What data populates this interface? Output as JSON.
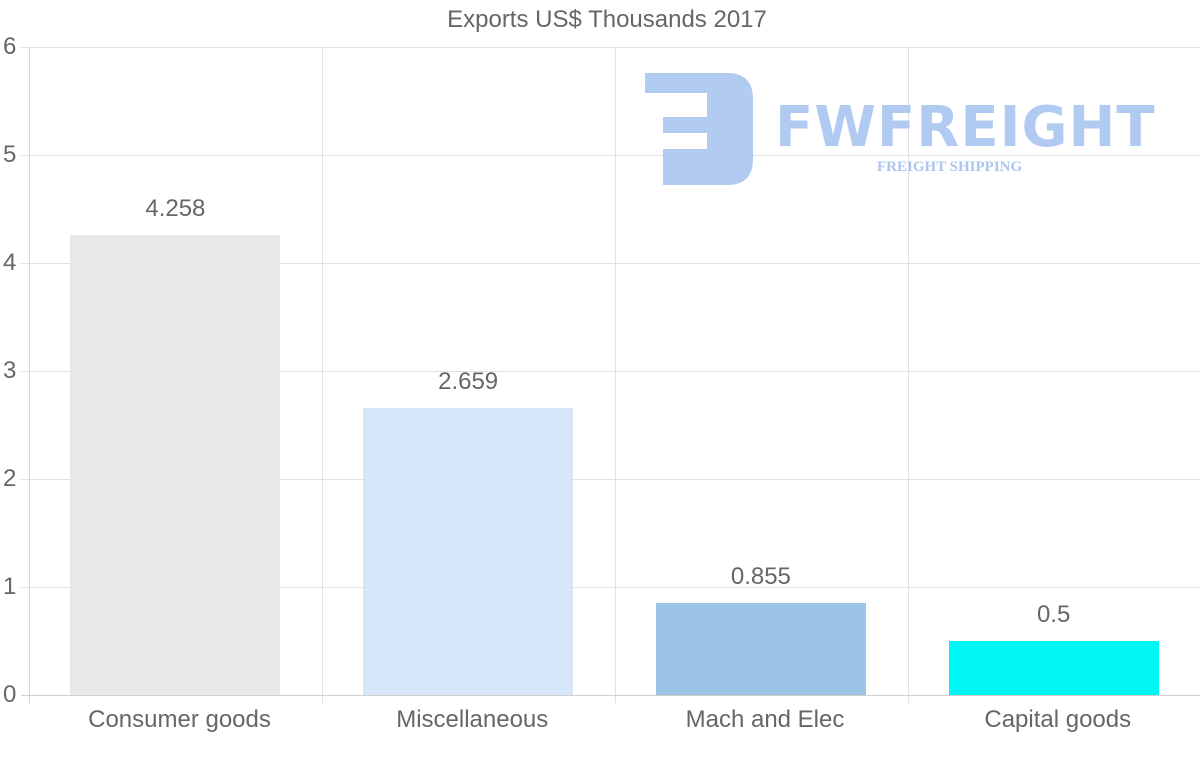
{
  "chart_data": {
    "type": "bar",
    "title": "Exports US$ Thousands 2017",
    "categories": [
      "Consumer goods",
      "Miscellaneous",
      "Mach and Elec",
      "Capital goods"
    ],
    "values": [
      4.258,
      2.659,
      0.855,
      0.5
    ],
    "value_labels": [
      "4.258",
      "2.659",
      "0.855",
      "0.5"
    ],
    "colors": [
      "#e8e8e8",
      "#d6e6f8",
      "#9cc4e6",
      "#00f5f5"
    ],
    "xlabel": "",
    "ylabel": "",
    "ylim": [
      0,
      6
    ],
    "yticks": [
      "0",
      "1",
      "2",
      "3",
      "4",
      "5",
      "6"
    ],
    "grid": true,
    "legend": null
  },
  "watermark": {
    "brand": "FWFREIGHT",
    "tagline": "FREIGHT SHIPPING",
    "color": "#a9c5f0"
  }
}
